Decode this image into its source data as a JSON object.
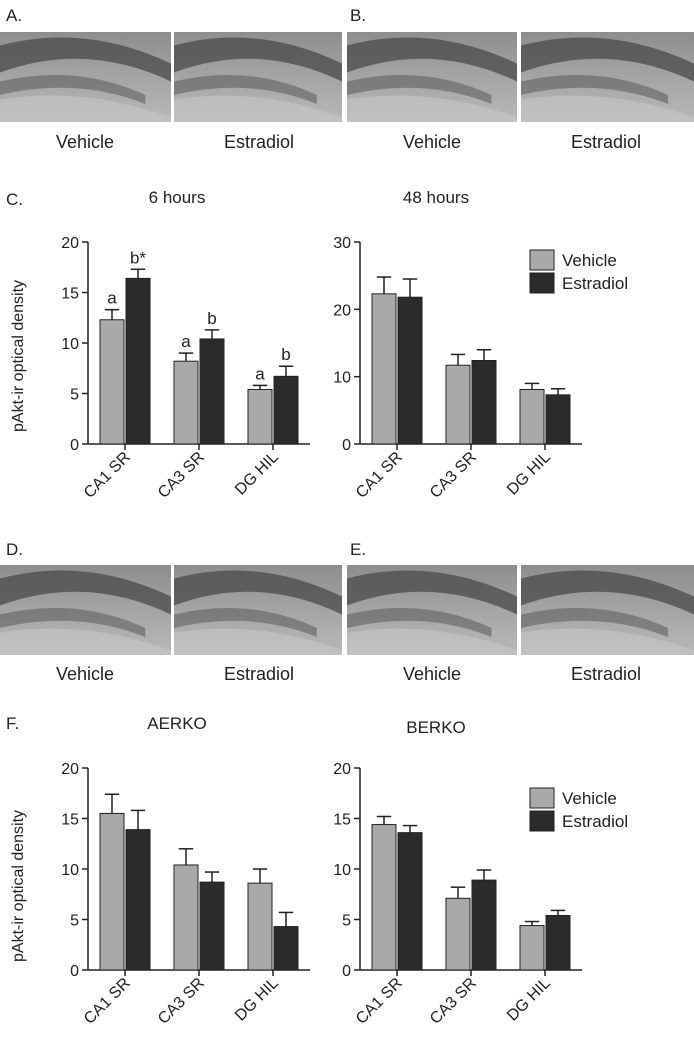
{
  "panels": {
    "A": "A.",
    "B": "B.",
    "C": "C.",
    "D": "D.",
    "E": "E.",
    "F": "F."
  },
  "image_captions": {
    "A": [
      "Vehicle",
      "Estradiol"
    ],
    "B": [
      "Vehicle",
      "Estradiol"
    ],
    "D": [
      "Vehicle",
      "Estradiol"
    ],
    "E": [
      "Vehicle",
      "Estradiol"
    ]
  },
  "colors": {
    "vehicle": "#a9a9a9",
    "estradiol": "#2b2b2b",
    "axis": "#222222"
  },
  "chart_data": [
    {
      "type": "bar",
      "panel": "C",
      "title": "6 hours",
      "ylabel": "pAkt-ir optical density",
      "xlabel": "",
      "categories": [
        "CA1 SR",
        "CA3 SR",
        "DG HIL"
      ],
      "ylim": [
        0,
        20
      ],
      "yticks": [
        0,
        5,
        10,
        15,
        20
      ],
      "series": [
        {
          "name": "Vehicle",
          "values": [
            12.3,
            8.2,
            5.4
          ],
          "errors": [
            1.0,
            0.8,
            0.4
          ],
          "labels": [
            "a",
            "a",
            "a"
          ]
        },
        {
          "name": "Estradiol",
          "values": [
            16.4,
            10.4,
            6.7
          ],
          "errors": [
            0.9,
            0.9,
            1.0
          ],
          "labels": [
            "b*",
            "b",
            "b"
          ]
        }
      ]
    },
    {
      "type": "bar",
      "panel": "C",
      "title": "48 hours",
      "categories": [
        "CA1 SR",
        "CA3 SR",
        "DG HIL"
      ],
      "ylim": [
        0,
        30
      ],
      "yticks": [
        0,
        10,
        20,
        30
      ],
      "legend": "top-right",
      "series": [
        {
          "name": "Vehicle",
          "values": [
            22.3,
            11.7,
            8.1
          ],
          "errors": [
            2.5,
            1.6,
            0.9
          ]
        },
        {
          "name": "Estradiol",
          "values": [
            21.8,
            12.4,
            7.3
          ],
          "errors": [
            2.7,
            1.6,
            0.9
          ]
        }
      ]
    },
    {
      "type": "bar",
      "panel": "F",
      "title": "AERKO",
      "ylabel": "pAkt-ir optical density",
      "categories": [
        "CA1 SR",
        "CA3 SR",
        "DG HIL"
      ],
      "ylim": [
        0,
        20
      ],
      "yticks": [
        0,
        5,
        10,
        15,
        20
      ],
      "series": [
        {
          "name": "Vehicle",
          "values": [
            15.5,
            10.4,
            8.6
          ],
          "errors": [
            1.9,
            1.6,
            1.4
          ]
        },
        {
          "name": "Estradiol",
          "values": [
            13.9,
            8.7,
            4.3
          ],
          "errors": [
            1.9,
            1.0,
            1.4
          ]
        }
      ]
    },
    {
      "type": "bar",
      "panel": "F",
      "title": "BERKO",
      "categories": [
        "CA1 SR",
        "CA3 SR",
        "DG HIL"
      ],
      "ylim": [
        0,
        20
      ],
      "yticks": [
        0,
        5,
        10,
        15,
        20
      ],
      "legend": "top-right",
      "series": [
        {
          "name": "Vehicle",
          "values": [
            14.4,
            7.1,
            4.4
          ],
          "errors": [
            0.8,
            1.1,
            0.4
          ]
        },
        {
          "name": "Estradiol",
          "values": [
            13.6,
            8.9,
            5.4
          ],
          "errors": [
            0.7,
            1.0,
            0.5
          ]
        }
      ]
    }
  ]
}
